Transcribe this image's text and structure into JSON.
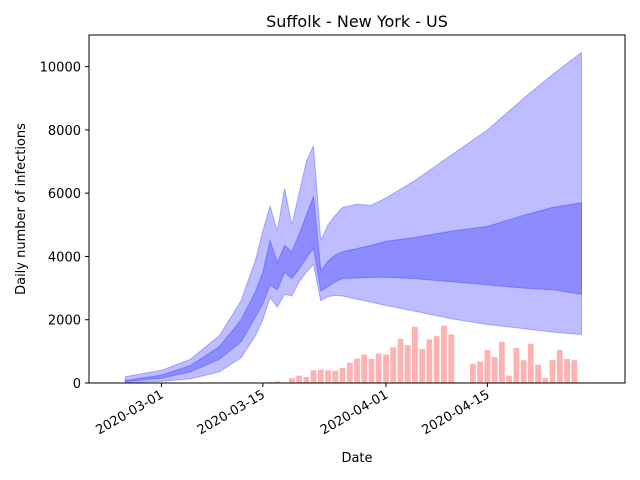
{
  "chart_data": {
    "type": "area",
    "title": "Suffolk - New York - US",
    "xlabel": "Date",
    "ylabel": "Daily number of infections",
    "xlim": [
      "2020-02-20",
      "2020-05-04"
    ],
    "ylim": [
      0,
      11000
    ],
    "xticks": [
      "2020-03-01",
      "2020-03-15",
      "2020-04-01",
      "2020-04-15"
    ],
    "yticks": [
      0,
      2000,
      4000,
      6000,
      8000,
      10000
    ],
    "grid": false,
    "legend": "none",
    "colors": {
      "band": "#0000ff",
      "bars": "#ff0000",
      "axis": "#000000"
    },
    "dates": [
      "2020-02-25",
      "2020-03-01",
      "2020-03-05",
      "2020-03-09",
      "2020-03-12",
      "2020-03-14",
      "2020-03-15",
      "2020-03-16",
      "2020-03-17",
      "2020-03-18",
      "2020-03-19",
      "2020-03-20",
      "2020-03-21",
      "2020-03-22",
      "2020-03-23",
      "2020-03-24",
      "2020-03-25",
      "2020-03-26",
      "2020-03-28",
      "2020-03-30",
      "2020-04-01",
      "2020-04-05",
      "2020-04-10",
      "2020-04-15",
      "2020-04-20",
      "2020-04-24",
      "2020-04-28"
    ],
    "outer_upper": [
      200,
      400,
      750,
      1500,
      2600,
      3900,
      4800,
      5600,
      4800,
      6150,
      5000,
      6000,
      7000,
      7500,
      4500,
      5000,
      5300,
      5550,
      5650,
      5620,
      5850,
      6400,
      7200,
      8000,
      9000,
      9750,
      10450
    ],
    "outer_lower": [
      20,
      50,
      130,
      350,
      800,
      1500,
      2000,
      2700,
      2400,
      2800,
      2750,
      3200,
      3500,
      3750,
      2600,
      2730,
      2770,
      2750,
      2650,
      2550,
      2450,
      2270,
      2030,
      1850,
      1720,
      1610,
      1530
    ],
    "inner_upper": [
      80,
      250,
      550,
      1150,
      2000,
      2900,
      3500,
      4500,
      3800,
      4350,
      4150,
      4700,
      5300,
      5900,
      3550,
      3850,
      4050,
      4150,
      4250,
      4350,
      4480,
      4600,
      4800,
      4950,
      5300,
      5550,
      5700
    ],
    "inner_lower": [
      50,
      150,
      350,
      750,
      1300,
      2100,
      2500,
      3100,
      2950,
      3500,
      3300,
      3600,
      3950,
      4250,
      2900,
      3050,
      3200,
      3300,
      3320,
      3340,
      3340,
      3300,
      3200,
      3100,
      3000,
      2950,
      2800
    ],
    "bar_dates": [
      "2020-03-15",
      "2020-03-16",
      "2020-03-17",
      "2020-03-18",
      "2020-03-19",
      "2020-03-20",
      "2020-03-21",
      "2020-03-22",
      "2020-03-23",
      "2020-03-24",
      "2020-03-25",
      "2020-03-26",
      "2020-03-27",
      "2020-03-28",
      "2020-03-29",
      "2020-03-30",
      "2020-03-31",
      "2020-04-01",
      "2020-04-02",
      "2020-04-03",
      "2020-04-04",
      "2020-04-05",
      "2020-04-06",
      "2020-04-07",
      "2020-04-08",
      "2020-04-09",
      "2020-04-10",
      "2020-04-11",
      "2020-04-12",
      "2020-04-13",
      "2020-04-14",
      "2020-04-15",
      "2020-04-16",
      "2020-04-17",
      "2020-04-18",
      "2020-04-19",
      "2020-04-20",
      "2020-04-21",
      "2020-04-22",
      "2020-04-23",
      "2020-04-24",
      "2020-04-25",
      "2020-04-26",
      "2020-04-27",
      "2020-04-28"
    ],
    "bar_values": [
      0,
      30,
      50,
      0,
      150,
      230,
      190,
      400,
      420,
      400,
      390,
      480,
      640,
      770,
      900,
      760,
      930,
      900,
      1130,
      1400,
      1200,
      1780,
      1070,
      1380,
      1480,
      1810,
      1540,
      0,
      0,
      610,
      680,
      1050,
      820,
      1300,
      230,
      1110,
      720,
      1240,
      580,
      160,
      720,
      1050,
      760,
      720,
      0
    ]
  }
}
